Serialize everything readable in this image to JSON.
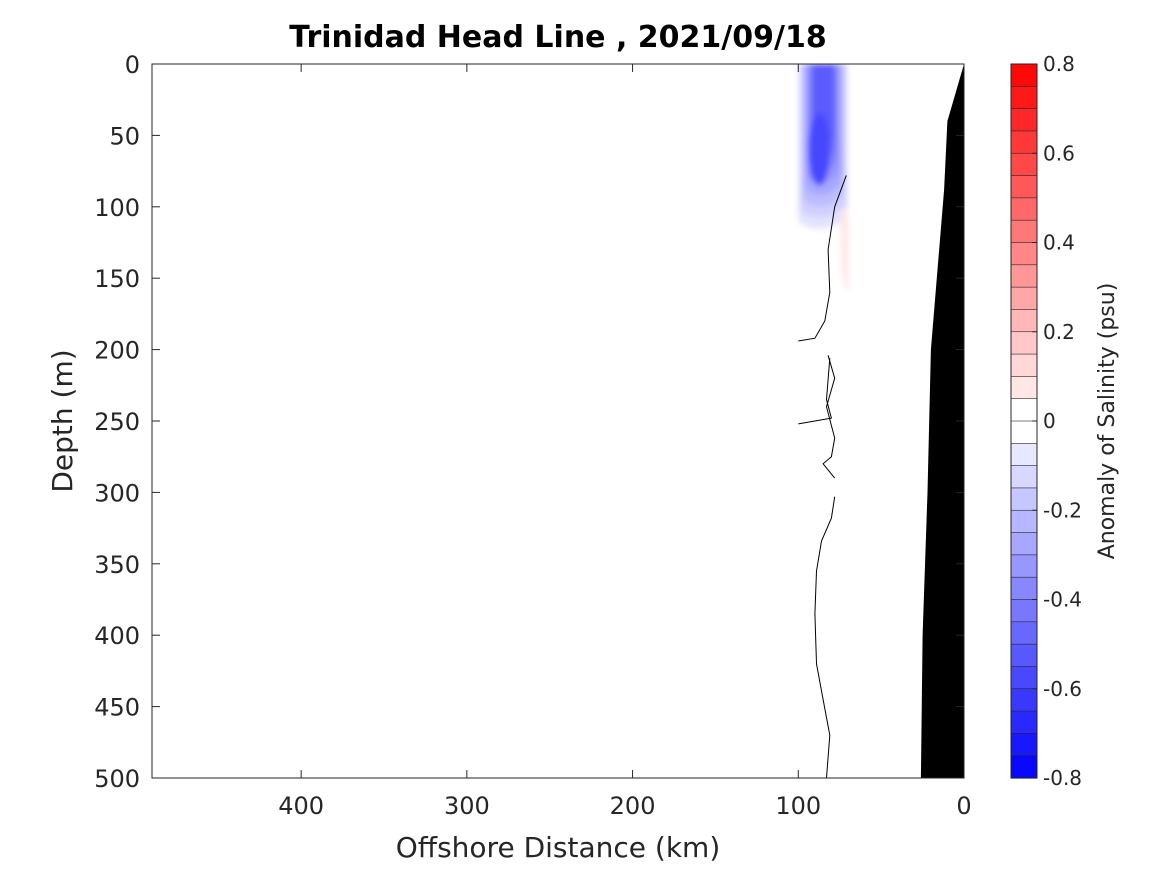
{
  "chart_data": {
    "type": "heatmap",
    "title": "Trinidad Head Line , 2021/09/18",
    "xlabel": "Offshore Distance (km)",
    "ylabel": "Depth (m)",
    "xlim": [
      490,
      0
    ],
    "ylim": [
      0,
      500
    ],
    "x_reversed": true,
    "y_reversed": true,
    "x_ticks": [
      400,
      300,
      200,
      100,
      0
    ],
    "y_ticks": [
      0,
      50,
      100,
      150,
      200,
      250,
      300,
      350,
      400,
      450,
      500
    ],
    "colorbar": {
      "label": "Anomaly of Salinity (psu)",
      "range": [
        -0.8,
        0.8
      ],
      "ticks": [
        0.8,
        0.6,
        0.4,
        0.2,
        0,
        -0.2,
        -0.4,
        -0.6,
        -0.8
      ],
      "ticks_text": [
        "0.8",
        "0.6",
        "0.4",
        "0.2",
        "0",
        "-0.2",
        "-0.4",
        "-0.6",
        "-0.8"
      ],
      "levels": 32,
      "colors": {
        "negative": "#0000ff",
        "zero": "#ffffff",
        "positive": "#ff0000"
      }
    },
    "anomaly_regions": [
      {
        "name": "fresh-core",
        "x_range": [
          70,
          100
        ],
        "depth_range": [
          0,
          115
        ],
        "min_value": -0.58
      },
      {
        "name": "salty-patch",
        "x_range": [
          70,
          74
        ],
        "depth_range": [
          95,
          160
        ],
        "max_value": 0.08
      }
    ],
    "zero_contour": [
      [
        [
          71,
          78
        ],
        [
          78,
          100
        ],
        [
          82,
          130
        ],
        [
          81,
          160
        ],
        [
          84,
          180
        ],
        [
          90,
          192
        ],
        [
          100,
          194
        ]
      ],
      [
        [
          81,
          206
        ],
        [
          83,
          235
        ],
        [
          80,
          248
        ],
        [
          90,
          250
        ],
        [
          100,
          252
        ]
      ],
      [
        [
          82,
          204
        ],
        [
          78,
          220
        ],
        [
          83,
          240
        ],
        [
          78,
          262
        ],
        [
          80,
          275
        ],
        [
          85,
          280
        ],
        [
          78,
          290
        ]
      ],
      [
        [
          78,
          303
        ],
        [
          80,
          318
        ],
        [
          86,
          334
        ],
        [
          89,
          355
        ],
        [
          90,
          385
        ],
        [
          89,
          420
        ],
        [
          85,
          445
        ],
        [
          81,
          470
        ],
        [
          83,
          500
        ]
      ]
    ],
    "bathymetry": [
      [
        0,
        0
      ],
      [
        10,
        40
      ],
      [
        12,
        88
      ],
      [
        20,
        200
      ],
      [
        22,
        300
      ],
      [
        25,
        400
      ],
      [
        26,
        500
      ],
      [
        0,
        500
      ]
    ],
    "bathymetry_color": "#000000"
  }
}
